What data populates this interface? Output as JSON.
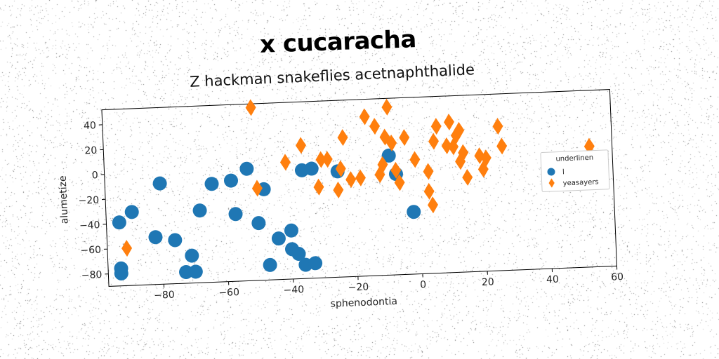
{
  "page": {
    "suptitle": "x cucaracha",
    "title": "Z hackman snakeflies acetnaphthalide"
  },
  "chart_data": {
    "type": "scatter",
    "title": "Z hackman snakeflies acetnaphthalide",
    "xlabel": "sphenodontia",
    "ylabel": "alumetize",
    "xlim": [
      -97,
      60
    ],
    "ylim": [
      -90,
      52
    ],
    "xticks": [
      -80,
      -60,
      -40,
      -20,
      0,
      20,
      40,
      60
    ],
    "yticks": [
      -80,
      -60,
      -40,
      -20,
      0,
      20,
      40
    ],
    "grid": false,
    "legend": {
      "title": "underlinen",
      "placement": "right"
    },
    "series": [
      {
        "name": "l",
        "marker": "circle",
        "color": "#1f77b4",
        "points": [
          [
            -93,
            -39
          ],
          [
            -89,
            -31
          ],
          [
            -93,
            -76
          ],
          [
            -93,
            -80
          ],
          [
            -82,
            -52
          ],
          [
            -80,
            -9
          ],
          [
            -76,
            -55
          ],
          [
            -73,
            -81
          ],
          [
            -71,
            -68
          ],
          [
            -70,
            -81
          ],
          [
            -68,
            -32
          ],
          [
            -64,
            -11
          ],
          [
            -58,
            -9
          ],
          [
            -57,
            -36
          ],
          [
            -53,
            0
          ],
          [
            -50,
            -44
          ],
          [
            -48,
            -17
          ],
          [
            -47,
            -78
          ],
          [
            -44,
            -57
          ],
          [
            -40,
            -51
          ],
          [
            -40,
            -66
          ],
          [
            -38,
            -70
          ],
          [
            -36,
            -79
          ],
          [
            -33,
            -78
          ],
          [
            -36,
            -3
          ],
          [
            -33,
            -2
          ],
          [
            -25,
            -5
          ],
          [
            -9,
            6
          ],
          [
            -7,
            -9
          ],
          [
            -2,
            -40
          ]
        ]
      },
      {
        "name": "yeasayers",
        "marker": "diamond",
        "color": "#ff7f0e",
        "points": [
          [
            -91,
            -60
          ],
          [
            -51,
            49
          ],
          [
            -50,
            -16
          ],
          [
            -41,
            4
          ],
          [
            -36,
            17
          ],
          [
            -31,
            -17
          ],
          [
            -30,
            5
          ],
          [
            -28,
            5
          ],
          [
            -25,
            -20
          ],
          [
            -24,
            -3
          ],
          [
            -23,
            22
          ],
          [
            -21,
            -12
          ],
          [
            -18,
            -11
          ],
          [
            -16,
            38
          ],
          [
            -13,
            30
          ],
          [
            -12,
            -9
          ],
          [
            -11,
            -1
          ],
          [
            -10,
            21
          ],
          [
            -9,
            45
          ],
          [
            -8,
            16
          ],
          [
            -7,
            -6
          ],
          [
            -6,
            -16
          ],
          [
            -4,
            20
          ],
          [
            -1,
            2
          ],
          [
            3,
            -8
          ],
          [
            3,
            -24
          ],
          [
            4,
            -35
          ],
          [
            5,
            16
          ],
          [
            6,
            28
          ],
          [
            9,
            12
          ],
          [
            10,
            31
          ],
          [
            11,
            11
          ],
          [
            12,
            20
          ],
          [
            13,
            24
          ],
          [
            13,
            -1
          ],
          [
            14,
            6
          ],
          [
            15,
            -14
          ],
          [
            19,
            3
          ],
          [
            20,
            -8
          ],
          [
            21,
            1
          ],
          [
            25,
            26
          ],
          [
            26,
            10
          ],
          [
            53,
            7
          ]
        ]
      }
    ]
  }
}
